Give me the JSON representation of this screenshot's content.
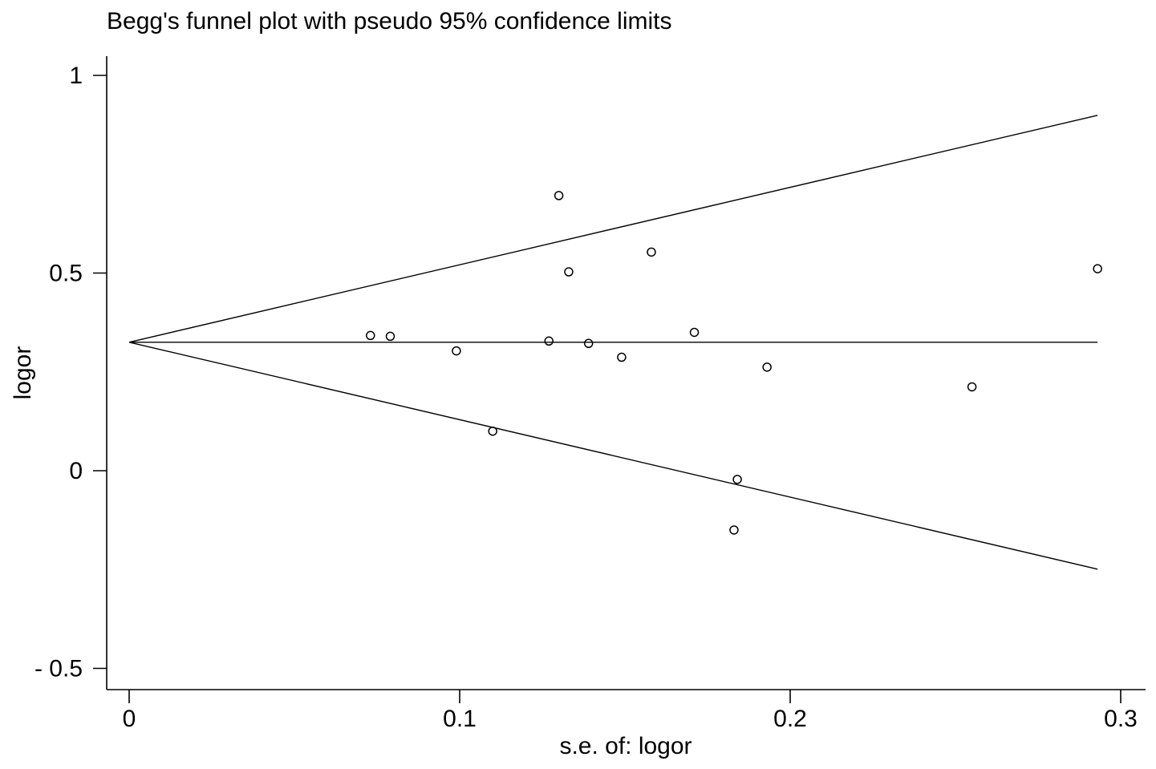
{
  "chart_data": {
    "type": "scatter",
    "title": "Begg's funnel plot with pseudo 95% confidence limits",
    "xlabel": "s.e. of: logor",
    "ylabel": "logor",
    "xlim": [
      0,
      0.3
    ],
    "ylim": [
      -0.5,
      1
    ],
    "x_ticks": [
      {
        "value": 0,
        "label": "0"
      },
      {
        "value": 0.1,
        "label": "0.1"
      },
      {
        "value": 0.2,
        "label": "0.2"
      },
      {
        "value": 0.3,
        "label": "0.3"
      }
    ],
    "y_ticks": [
      {
        "value": 1,
        "label": "1"
      },
      {
        "value": 0.5,
        "label": "0.5"
      },
      {
        "value": 0,
        "label": "0"
      },
      {
        "value": -0.5,
        "label": "- 0.5"
      }
    ],
    "pooled_estimate": 0.325,
    "funnel_max_se": 0.293,
    "upper_limit_at_max_se": 0.899,
    "lower_limit_at_max_se": -0.249,
    "points": [
      {
        "x": 0.073,
        "y": 0.342
      },
      {
        "x": 0.079,
        "y": 0.34
      },
      {
        "x": 0.099,
        "y": 0.303
      },
      {
        "x": 0.11,
        "y": 0.1
      },
      {
        "x": 0.127,
        "y": 0.328
      },
      {
        "x": 0.13,
        "y": 0.696
      },
      {
        "x": 0.133,
        "y": 0.503
      },
      {
        "x": 0.139,
        "y": 0.322
      },
      {
        "x": 0.149,
        "y": 0.287
      },
      {
        "x": 0.158,
        "y": 0.553
      },
      {
        "x": 0.171,
        "y": 0.35
      },
      {
        "x": 0.183,
        "y": -0.15
      },
      {
        "x": 0.184,
        "y": -0.022
      },
      {
        "x": 0.193,
        "y": 0.262
      },
      {
        "x": 0.255,
        "y": 0.212
      },
      {
        "x": 0.293,
        "y": 0.511
      }
    ],
    "grid": false,
    "line_color": "#000000",
    "marker": "hollow-circle"
  }
}
